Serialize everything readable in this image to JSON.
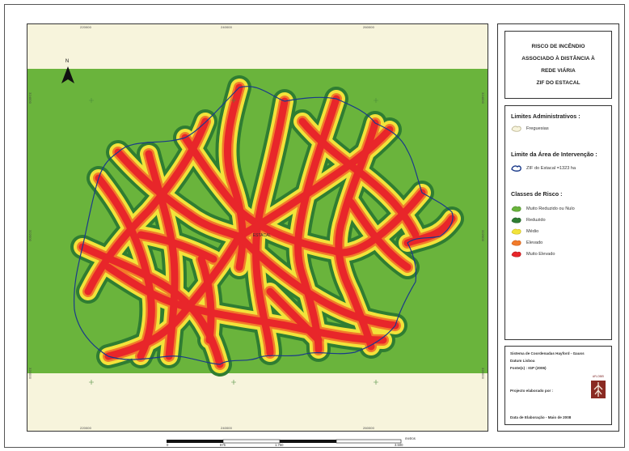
{
  "title": {
    "lines": [
      "RISCO DE INCÊNDIO",
      "ASSOCIADO À DISTÂNCIA À",
      "REDE VIÁRIA",
      "ZIF DO ESTACAL"
    ]
  },
  "map": {
    "north_label": "N",
    "top_ticks": [
      "220000",
      "240000",
      "260000"
    ],
    "bottom_ticks": [
      "220000",
      "240000",
      "260000"
    ],
    "left_ticks": [
      "324000",
      "322000",
      "320000"
    ],
    "right_ticks": [
      "324000",
      "322000",
      "320000"
    ],
    "place_label": "ESTACAL"
  },
  "legend": {
    "admin_heading": "Limites Administrativos :",
    "admin_item": "Freguesias",
    "intervention_heading": "Limite da Área de Intervenção :",
    "intervention_item": "ZIF do Estacal =1323 ha",
    "risk_heading": "Classes de Risco :",
    "risk_classes": [
      {
        "label": "Muito Reduzido ou Nulo",
        "color": "#6ab43c"
      },
      {
        "label": "Reduzido",
        "color": "#2f7d32"
      },
      {
        "label": "Médio",
        "color": "#f2e33a"
      },
      {
        "label": "Elevado",
        "color": "#f27b2a"
      },
      {
        "label": "Muito Elevado",
        "color": "#e8262a"
      }
    ]
  },
  "info": {
    "coords": "Sistema de Coordenadas Hayford - Gauss",
    "datum": "Datum Lisboa",
    "source": "Fonte(s) : IGP (2006)",
    "made_by": "Projecto elaborado por :",
    "date": "Data de Elaboração - Maio de 2008",
    "logo_text": "AFLOBEI"
  },
  "scale": {
    "unit": "metros",
    "ticks": [
      "0",
      "875",
      "1.750",
      "",
      "3.500"
    ]
  },
  "colors": {
    "background_outside": "#f7f4dc",
    "background_green": "#6ab43c",
    "boundary": "#1a3a8a"
  }
}
